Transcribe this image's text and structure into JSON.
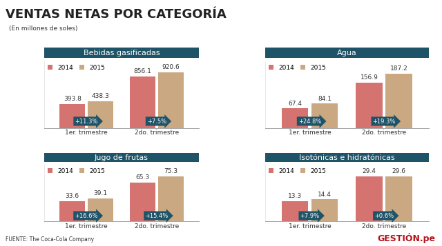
{
  "title": "VENTAS NETAS POR CATEGORÍA",
  "subtitle": "(En millones de soles)",
  "source": "FUENTE: The Coca-Cola Company",
  "brand": "GESTIÓN.pe",
  "chart_data": [
    {
      "type": "bar",
      "title": "Bebidas gasificadas",
      "categories": [
        "1er. trimestre",
        "2do. trimestre"
      ],
      "series": [
        {
          "name": "2014",
          "color": "#d4736f",
          "values": [
            393.8,
            856.1
          ]
        },
        {
          "name": "2015",
          "color": "#c9a882",
          "values": [
            438.3,
            920.6
          ]
        }
      ],
      "annotations": [
        "+11.3%",
        "+7.5%"
      ],
      "ylim": [
        0,
        1100
      ],
      "data_labels": true,
      "tick_labels": "x",
      "legend": "upper left"
    },
    {
      "type": "bar",
      "title": "Agua",
      "categories": [
        "1er. trimestre",
        "2do. trimestre"
      ],
      "series": [
        {
          "name": "2014",
          "color": "#d4736f",
          "values": [
            67.4,
            156.9
          ]
        },
        {
          "name": "2015",
          "color": "#c9a882",
          "values": [
            84.1,
            187.2
          ]
        }
      ],
      "annotations": [
        "+24.8%",
        "+19.3%"
      ],
      "ylim": [
        0,
        230
      ],
      "data_labels": true,
      "tick_labels": "x",
      "legend": "upper left"
    },
    {
      "type": "bar",
      "title": "Jugo de frutas",
      "categories": [
        "1er. trimestre",
        "2do. trimestre"
      ],
      "series": [
        {
          "name": "2014",
          "color": "#d4736f",
          "values": [
            33.6,
            65.3
          ]
        },
        {
          "name": "2015",
          "color": "#c9a882",
          "values": [
            39.1,
            75.3
          ]
        }
      ],
      "annotations": [
        "+16.6%",
        "+15.4%"
      ],
      "ylim": [
        0,
        95
      ],
      "data_labels": true,
      "tick_labels": "x",
      "legend": "upper left"
    },
    {
      "type": "bar",
      "title": "Isotónicas e hidratónicas",
      "categories": [
        "1er. trimestre",
        "2do. trimestre"
      ],
      "series": [
        {
          "name": "2014",
          "color": "#d4736f",
          "values": [
            13.3,
            29.4
          ]
        },
        {
          "name": "2015",
          "color": "#c9a882",
          "values": [
            14.4,
            29.6
          ]
        }
      ],
      "annotations": [
        "+7.9%",
        "+0.6%"
      ],
      "ylim": [
        0,
        37
      ],
      "data_labels": true,
      "tick_labels": "x",
      "legend": "upper left"
    }
  ]
}
